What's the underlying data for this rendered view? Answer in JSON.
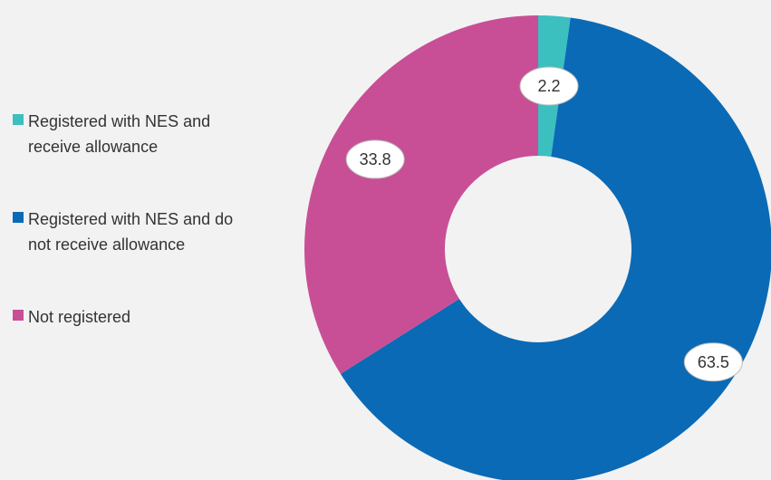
{
  "chart_data": {
    "type": "pie",
    "title": "",
    "categories": [
      "Registered with NES and receive allowance",
      "Registered with NES and do not receive allowance",
      "Not registered"
    ],
    "values": [
      2.2,
      63.5,
      33.8
    ],
    "colors": [
      "#3cbfbf",
      "#0a6ab6",
      "#c84f96"
    ],
    "value_labels": [
      "2.2",
      "63.5",
      "33.8"
    ],
    "legend_position": "left",
    "donut": true
  },
  "legend": {
    "items": [
      {
        "label": "Registered with NES and receive allowance",
        "color": "#3cbfbf"
      },
      {
        "label": "Registered with NES and do not receive allowance",
        "color": "#0a6ab6"
      },
      {
        "label": "Not registered",
        "color": "#c84f96"
      }
    ]
  }
}
